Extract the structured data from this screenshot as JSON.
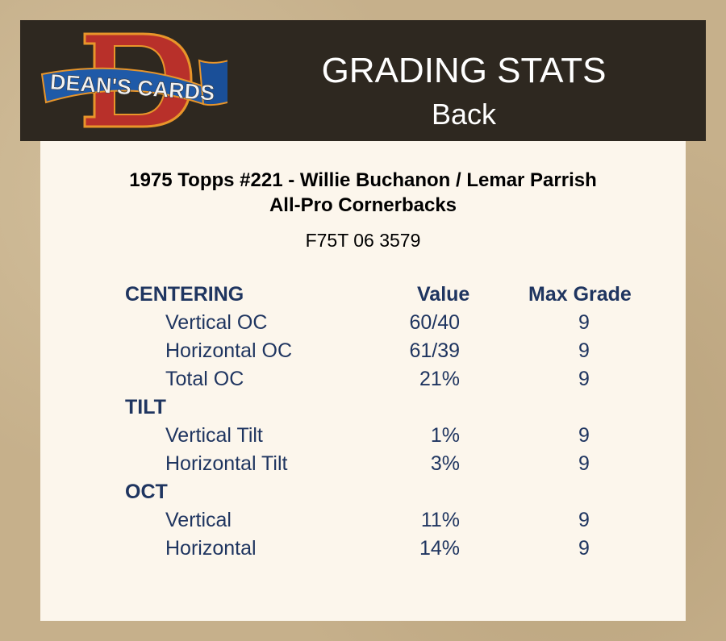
{
  "header": {
    "logo_text": "DEAN'S CARDS",
    "title": "GRADING STATS",
    "subtitle": "Back"
  },
  "card": {
    "line1": "1975 Topps #221  -  Willie Buchanon / Lemar Parrish",
    "line2": "All-Pro Cornerbacks",
    "cert": "F75T 06 3579"
  },
  "table": {
    "headers": {
      "value": "Value",
      "max_grade": "Max Grade"
    },
    "sections": [
      {
        "name": "CENTERING",
        "rows": [
          {
            "label": "Vertical OC",
            "value": "60/40",
            "max": "9"
          },
          {
            "label": "Horizontal OC",
            "value": "61/39",
            "max": "9"
          },
          {
            "label": "Total OC",
            "value": "21%",
            "max": "9"
          }
        ]
      },
      {
        "name": "TILT",
        "rows": [
          {
            "label": "Vertical Tilt",
            "value": "1%",
            "max": "9"
          },
          {
            "label": "Horizontal Tilt",
            "value": "3%",
            "max": "9"
          }
        ]
      },
      {
        "name": "OCT",
        "rows": [
          {
            "label": "Vertical",
            "value": "11%",
            "max": "9"
          },
          {
            "label": "Horizontal",
            "value": "14%",
            "max": "9"
          }
        ]
      }
    ]
  }
}
